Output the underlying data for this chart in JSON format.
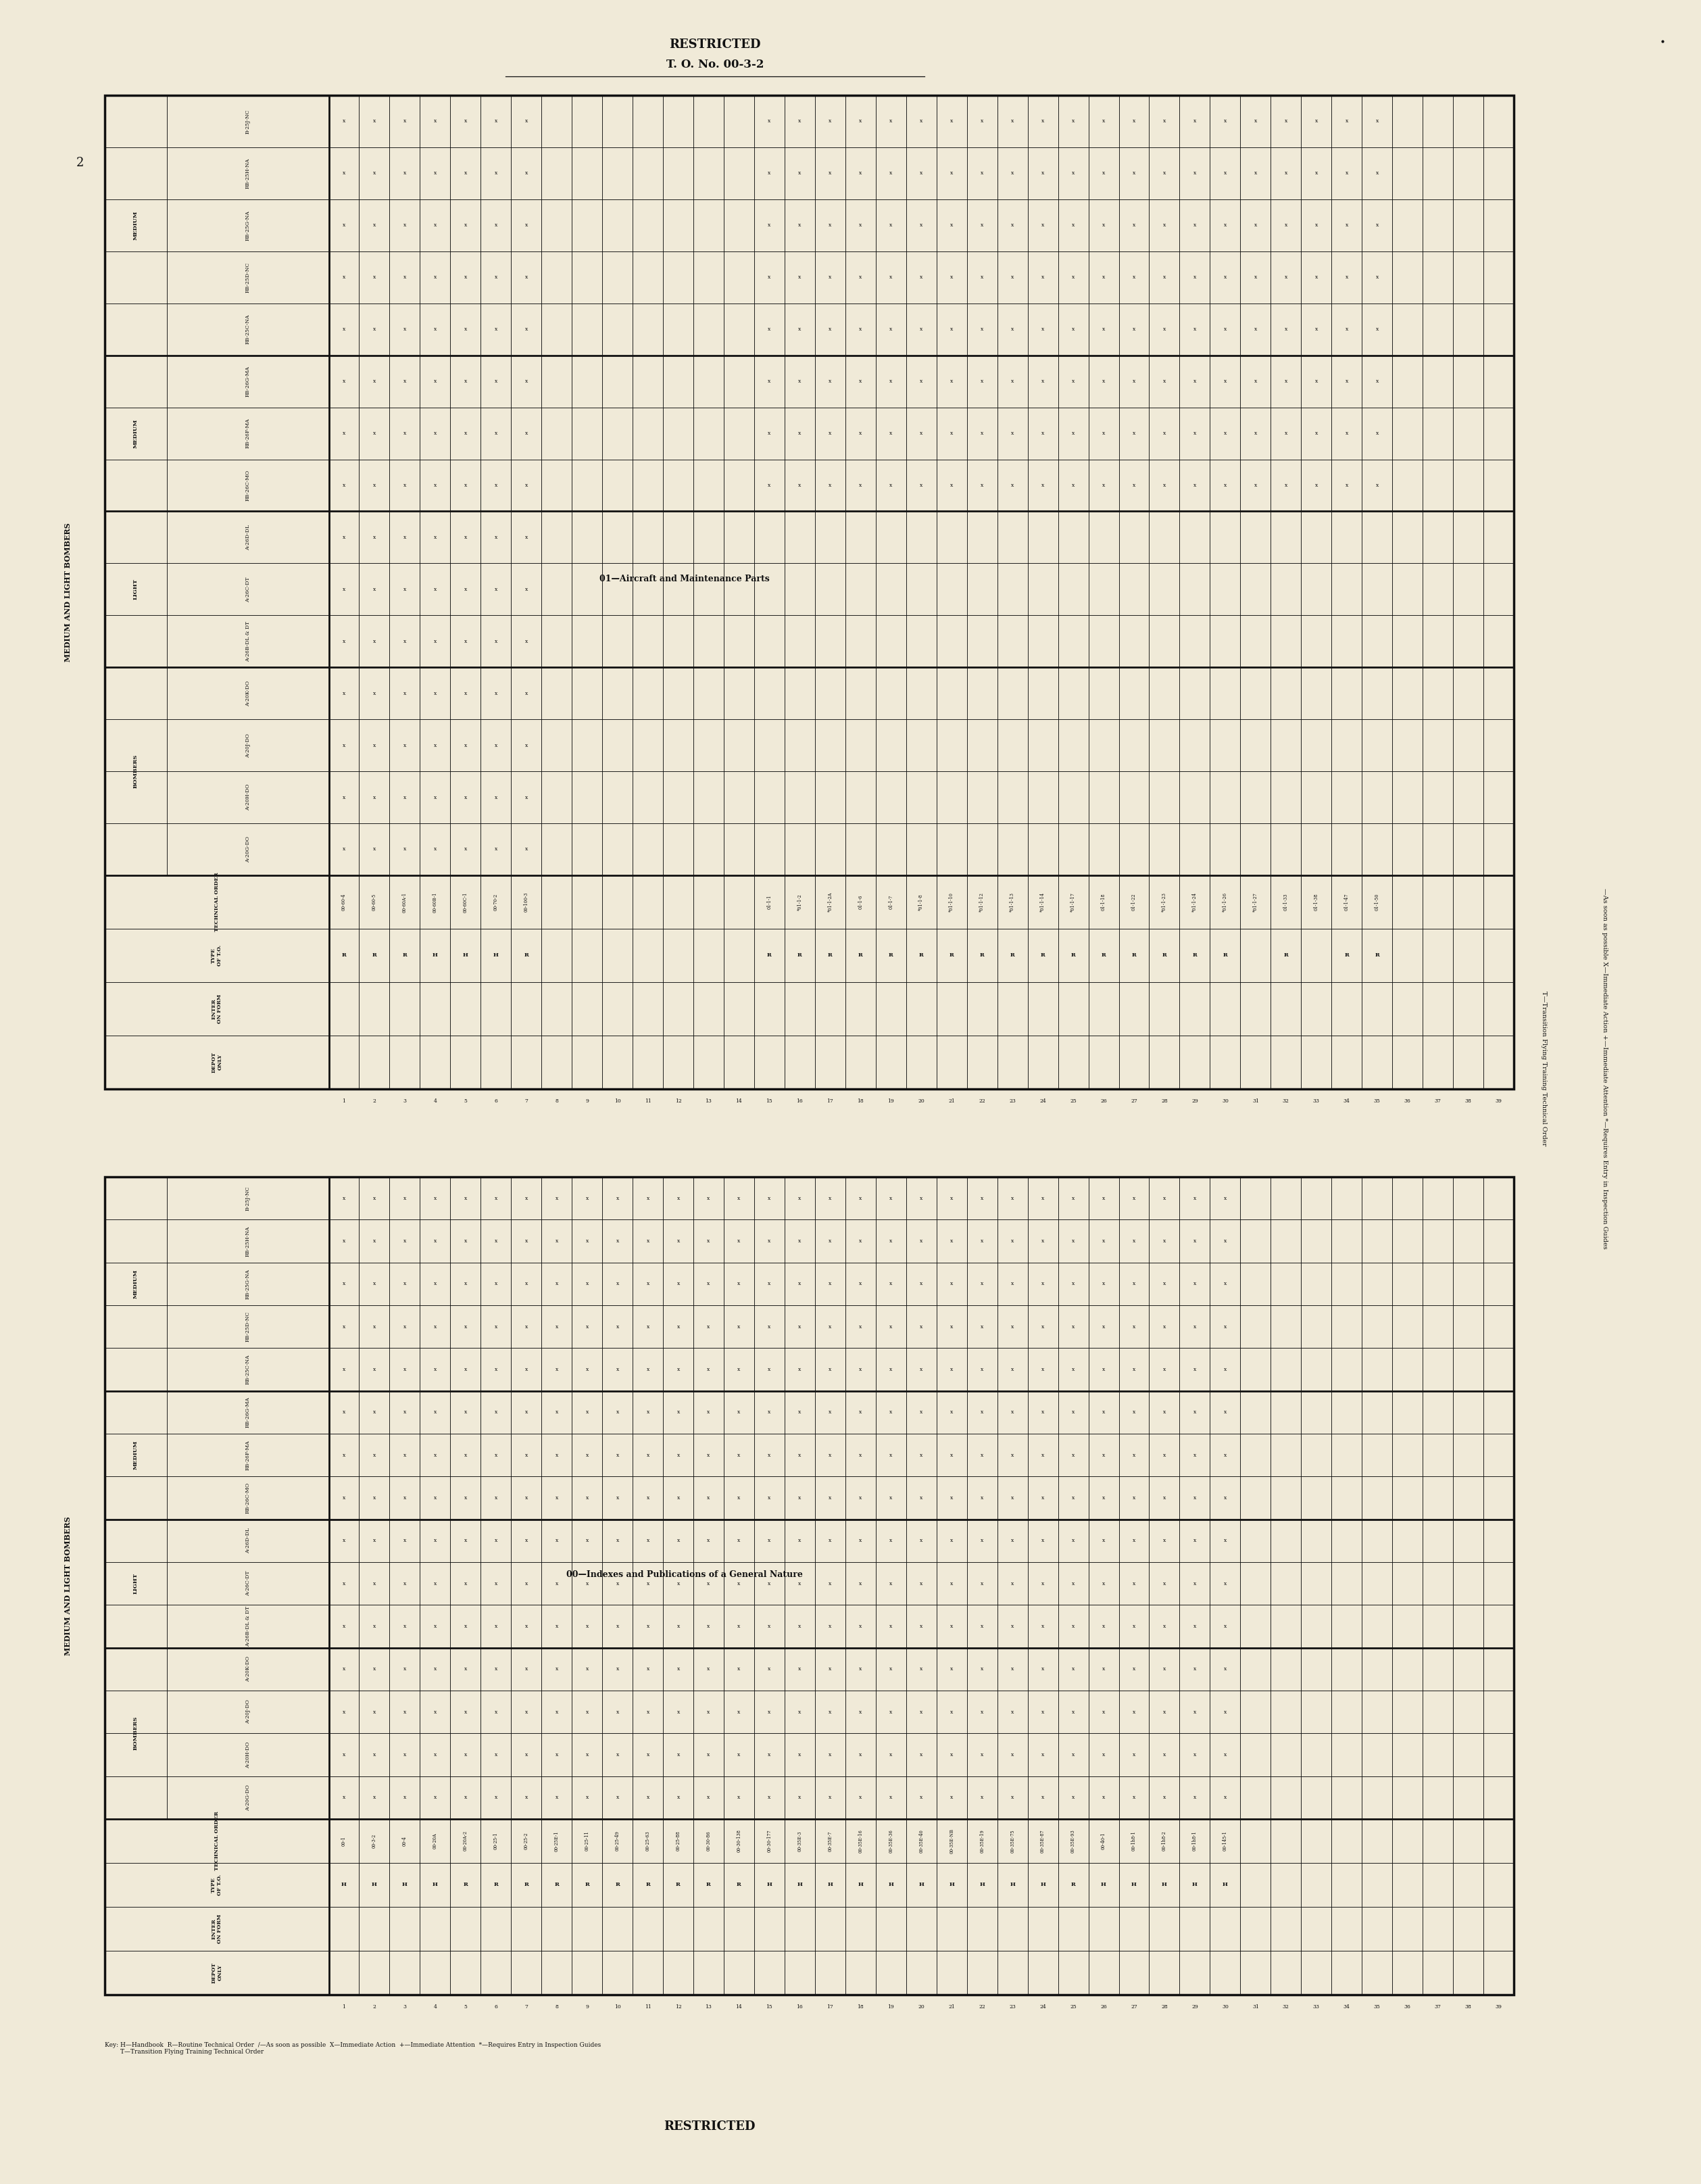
{
  "page_bg": "#f0ead8",
  "line_color": "#111111",
  "header_text": "RESTRICTED",
  "header_subtext": "T. O. No. 00-3-2",
  "footer_text": "RESTRICTED",
  "page_number": "2",
  "table1_title": "01—Aircraft and Maintenance Parts",
  "table2_title": "00—Indexes and Publications of a General Nature",
  "side_label": "MEDIUM AND LIGHT BOMBERS",
  "right_label_1": "—As soon as possible X—Immediate Action +—Immediate Attention *—Requires Entry in Inspection Guides",
  "right_label_2": "T—Transition Flying Training Technical Order",
  "key_text": "Key: H—Handbook  R—Routine Technical Order  /—As soon as possible  X—Immediate Action  +—Immediate Attention  *—Requires Entry in Inspection Guides\n        T—Transition Flying Training Technical Order",
  "aircraft_groups": [
    {
      "label": "BOMBERS",
      "aircraft": [
        "A-20G-DO",
        "A-20H-DO",
        "A-20J-DO",
        "A-20K-DO"
      ]
    },
    {
      "label": "LIGHT",
      "aircraft": [
        "A-26B-DL & DT",
        "A-26C-DT",
        "A-26D-DL"
      ]
    },
    {
      "label": "MEDIUM",
      "aircraft": [
        "RB-26C-MO",
        "RB-26F-MA",
        "RB-26G-MA"
      ]
    },
    {
      "label": "MEDIUM",
      "aircraft": [
        "RB-25C-NA",
        "RB-25D-NC",
        "RB-25G-NA",
        "RB-25H-NA",
        "B-25J-NC"
      ]
    }
  ],
  "meta_rows": [
    "DEPOT\nONLY",
    "ENTER\nON FORM",
    "TYPE\nOF T.O.",
    "TECHNICAL ORDER"
  ],
  "table1_cols": [
    {
      "num": "00-60-4",
      "type": "R",
      "rows": [
        0,
        1,
        2,
        3,
        4,
        5,
        6,
        7,
        8,
        9,
        10,
        11,
        12,
        13,
        14
      ]
    },
    {
      "num": "00-60-5",
      "type": "R",
      "rows": [
        0,
        1,
        2,
        3,
        4,
        5,
        6,
        7,
        8,
        9,
        10,
        11,
        12,
        13,
        14
      ]
    },
    {
      "num": "00-60A-1",
      "type": "R",
      "rows": [
        0,
        1,
        2,
        3,
        4,
        5,
        6,
        7,
        8,
        9,
        10,
        11,
        12,
        13,
        14
      ]
    },
    {
      "num": "00-60B-1",
      "type": "H",
      "rows": [
        0,
        1,
        2,
        3,
        4,
        5,
        6,
        7,
        8,
        9,
        10,
        11,
        12,
        13,
        14
      ]
    },
    {
      "num": "00-60C-1",
      "type": "H",
      "rows": [
        0,
        1,
        2,
        3,
        4,
        5,
        6,
        7,
        8,
        9,
        10,
        11,
        12,
        13,
        14
      ]
    },
    {
      "num": "00-70-2",
      "type": "H",
      "rows": [
        0,
        1,
        2,
        3,
        4,
        5,
        6,
        7,
        8,
        9,
        10,
        11,
        12,
        13,
        14
      ]
    },
    {
      "num": "00-100-3",
      "type": "R",
      "rows": [
        0,
        1,
        2,
        3,
        4,
        5,
        6,
        7,
        8,
        9,
        10,
        11,
        12,
        13,
        14
      ]
    },
    {
      "num": "",
      "type": "",
      "rows": []
    },
    {
      "num": "",
      "type": "",
      "rows": []
    },
    {
      "num": "",
      "type": "",
      "rows": []
    },
    {
      "num": "",
      "type": "",
      "rows": []
    },
    {
      "num": "",
      "type": "",
      "rows": []
    },
    {
      "num": "",
      "type": "",
      "rows": []
    },
    {
      "num": "",
      "type": "",
      "rows": []
    },
    {
      "num": "01-1-1",
      "type": "R",
      "rows": [
        7,
        8,
        9,
        10,
        11,
        12,
        13,
        14
      ]
    },
    {
      "num": "*01-1-2",
      "type": "R",
      "rows": [
        7,
        8,
        9,
        10,
        11,
        12,
        13,
        14
      ]
    },
    {
      "num": "*01-1-2A",
      "type": "R",
      "rows": [
        7,
        8,
        9,
        10,
        11,
        12,
        13,
        14
      ]
    },
    {
      "num": "01-1-6",
      "type": "R",
      "rows": [
        7,
        8,
        9,
        10,
        11,
        12,
        13,
        14
      ]
    },
    {
      "num": "01-1-7",
      "type": "R",
      "rows": [
        7,
        8,
        9,
        10,
        11,
        12,
        13,
        14
      ]
    },
    {
      "num": "*01-1-8",
      "type": "R",
      "rows": [
        7,
        8,
        9,
        10,
        11,
        12,
        13,
        14
      ]
    },
    {
      "num": "*01-1-10",
      "type": "R",
      "rows": [
        7,
        8,
        9,
        10,
        11,
        12,
        13,
        14
      ]
    },
    {
      "num": "*01-1-12",
      "type": "R",
      "rows": [
        7,
        8,
        9,
        10,
        11,
        12,
        13,
        14
      ]
    },
    {
      "num": "*01-1-13",
      "type": "R",
      "rows": [
        7,
        8,
        9,
        10,
        11,
        12,
        13,
        14
      ]
    },
    {
      "num": "*01-1-14",
      "type": "R",
      "rows": [
        7,
        8,
        9,
        10,
        11,
        12,
        13,
        14
      ]
    },
    {
      "num": "*01-1-17",
      "type": "R",
      "rows": [
        7,
        8,
        9,
        10,
        11,
        12,
        13,
        14
      ]
    },
    {
      "num": "01-1-18",
      "type": "R",
      "rows": [
        7,
        8,
        9,
        10,
        11,
        12,
        13,
        14
      ]
    },
    {
      "num": "01-1-22",
      "type": "R",
      "rows": [
        7,
        8,
        9,
        10,
        11,
        12,
        13,
        14
      ]
    },
    {
      "num": "*01-1-23",
      "type": "R",
      "rows": [
        7,
        8,
        9,
        10,
        11,
        12,
        13,
        14
      ]
    },
    {
      "num": "*01-1-24",
      "type": "R",
      "rows": [
        7,
        8,
        9,
        10,
        11,
        12,
        13,
        14
      ]
    },
    {
      "num": "*01-1-26",
      "type": "R",
      "rows": [
        7,
        8,
        9,
        10,
        11,
        12,
        13,
        14
      ]
    },
    {
      "num": "*01-1-27",
      "type": "",
      "rows": [
        7,
        8,
        9,
        10,
        11,
        12,
        13,
        14
      ]
    },
    {
      "num": "01-1-33",
      "type": "R",
      "rows": [
        7,
        8,
        9,
        10,
        11,
        12,
        13,
        14
      ]
    },
    {
      "num": "01-1-38",
      "type": "",
      "rows": [
        7,
        8,
        9,
        10,
        11,
        12,
        13,
        14
      ]
    },
    {
      "num": "01-1-47",
      "type": "R",
      "rows": [
        7,
        8,
        9,
        10,
        11,
        12,
        13,
        14
      ]
    },
    {
      "num": "01-1-50",
      "type": "R",
      "rows": [
        7,
        8,
        9,
        10,
        11,
        12,
        13,
        14
      ]
    },
    {
      "num": "",
      "type": "",
      "rows": []
    },
    {
      "num": "",
      "type": "",
      "rows": []
    },
    {
      "num": "",
      "type": "",
      "rows": []
    },
    {
      "num": "",
      "type": "",
      "rows": []
    }
  ],
  "table2_cols": [
    {
      "num": "00-1",
      "type": "H",
      "rows": [
        0,
        1,
        2,
        3,
        4,
        5,
        6,
        7,
        8,
        9,
        10,
        11,
        12,
        13,
        14
      ]
    },
    {
      "num": "00-3-2",
      "type": "H",
      "rows": [
        0,
        1,
        2,
        3,
        4,
        5,
        6,
        7,
        8,
        9,
        10,
        11,
        12,
        13,
        14
      ]
    },
    {
      "num": "00-4",
      "type": "H",
      "rows": [
        0,
        1,
        2,
        3,
        4,
        5,
        6,
        7,
        8,
        9,
        10,
        11,
        12,
        13,
        14
      ]
    },
    {
      "num": "00-20A",
      "type": "H",
      "rows": [
        0,
        1,
        2,
        3,
        4,
        5,
        6,
        7,
        8,
        9,
        10,
        11,
        12,
        13,
        14
      ]
    },
    {
      "num": "00-20A-2",
      "type": "R",
      "rows": [
        0,
        1,
        2,
        3,
        4,
        5,
        6,
        7,
        8,
        9,
        10,
        11,
        12,
        13,
        14
      ]
    },
    {
      "num": "00-25-1",
      "type": "R",
      "rows": [
        0,
        1,
        2,
        3,
        4,
        5,
        6,
        7,
        8,
        9,
        10,
        11,
        12,
        13,
        14
      ]
    },
    {
      "num": "00-25-2",
      "type": "R",
      "rows": [
        0,
        1,
        2,
        3,
        4,
        5,
        6,
        7,
        8,
        9,
        10,
        11,
        12,
        13,
        14
      ]
    },
    {
      "num": "00-25E-1",
      "type": "R",
      "rows": [
        0,
        1,
        2,
        3,
        4,
        5,
        6,
        7,
        8,
        9,
        10,
        11,
        12,
        13,
        14
      ]
    },
    {
      "num": "00-25-11",
      "type": "R",
      "rows": [
        0,
        1,
        2,
        3,
        4,
        5,
        6,
        7,
        8,
        9,
        10,
        11,
        12,
        13,
        14
      ]
    },
    {
      "num": "00-25-49",
      "type": "R",
      "rows": [
        0,
        1,
        2,
        3,
        4,
        5,
        6,
        7,
        8,
        9,
        10,
        11,
        12,
        13,
        14
      ]
    },
    {
      "num": "00-25-63",
      "type": "R",
      "rows": [
        0,
        1,
        2,
        3,
        4,
        5,
        6,
        7,
        8,
        9,
        10,
        11,
        12,
        13,
        14
      ]
    },
    {
      "num": "00-25-88",
      "type": "R",
      "rows": [
        0,
        1,
        2,
        3,
        4,
        5,
        6,
        7,
        8,
        9,
        10,
        11,
        12,
        13,
        14
      ]
    },
    {
      "num": "00-30-86",
      "type": "R",
      "rows": [
        0,
        1,
        2,
        3,
        4,
        5,
        6,
        7,
        8,
        9,
        10,
        11,
        12,
        13,
        14
      ]
    },
    {
      "num": "00-30-138",
      "type": "R",
      "rows": [
        0,
        1,
        2,
        3,
        4,
        5,
        6,
        7,
        8,
        9,
        10,
        11,
        12,
        13,
        14
      ]
    },
    {
      "num": "00-30-177",
      "type": "H",
      "rows": [
        0,
        1,
        2,
        3,
        4,
        5,
        6,
        7,
        8,
        9,
        10,
        11,
        12,
        13,
        14
      ]
    },
    {
      "num": "00-35E-3",
      "type": "H",
      "rows": [
        0,
        1,
        2,
        3,
        4,
        5,
        6,
        7,
        8,
        9,
        10,
        11,
        12,
        13,
        14
      ]
    },
    {
      "num": "00-35E-7",
      "type": "H",
      "rows": [
        0,
        1,
        2,
        3,
        4,
        5,
        6,
        7,
        8,
        9,
        10,
        11,
        12,
        13,
        14
      ]
    },
    {
      "num": "00-35E-16",
      "type": "H",
      "rows": [
        0,
        1,
        2,
        3,
        4,
        5,
        6,
        7,
        8,
        9,
        10,
        11,
        12,
        13,
        14
      ]
    },
    {
      "num": "00-35E-36",
      "type": "H",
      "rows": [
        0,
        1,
        2,
        3,
        4,
        5,
        6,
        7,
        8,
        9,
        10,
        11,
        12,
        13,
        14
      ]
    },
    {
      "num": "00-35E-40",
      "type": "H",
      "rows": [
        0,
        1,
        2,
        3,
        4,
        5,
        6,
        7,
        8,
        9,
        10,
        11,
        12,
        13,
        14
      ]
    },
    {
      "num": "00-35E-NB",
      "type": "H",
      "rows": [
        0,
        1,
        2,
        3,
        4,
        5,
        6,
        7,
        8,
        9,
        10,
        11,
        12,
        13,
        14
      ]
    },
    {
      "num": "00-35E-19",
      "type": "H",
      "rows": [
        0,
        1,
        2,
        3,
        4,
        5,
        6,
        7,
        8,
        9,
        10,
        11,
        12,
        13,
        14
      ]
    },
    {
      "num": "00-35E-75",
      "type": "H",
      "rows": [
        0,
        1,
        2,
        3,
        4,
        5,
        6,
        7,
        8,
        9,
        10,
        11,
        12,
        13,
        14
      ]
    },
    {
      "num": "00-35E-87",
      "type": "H",
      "rows": [
        0,
        1,
        2,
        3,
        4,
        5,
        6,
        7,
        8,
        9,
        10,
        11,
        12,
        13,
        14
      ]
    },
    {
      "num": "00-35E-93",
      "type": "R",
      "rows": [
        0,
        1,
        2,
        3,
        4,
        5,
        6,
        7,
        8,
        9,
        10,
        11,
        12,
        13,
        14
      ]
    },
    {
      "num": "00-40-1",
      "type": "H",
      "rows": [
        0,
        1,
        2,
        3,
        4,
        5,
        6,
        7,
        8,
        9,
        10,
        11,
        12,
        13,
        14
      ]
    },
    {
      "num": "00-1h8-1",
      "type": "H",
      "rows": [
        0,
        1,
        2,
        3,
        4,
        5,
        6,
        7,
        8,
        9,
        10,
        11,
        12,
        13,
        14
      ]
    },
    {
      "num": "00-1h8-2",
      "type": "H",
      "rows": [
        0,
        1,
        2,
        3,
        4,
        5,
        6,
        7,
        8,
        9,
        10,
        11,
        12,
        13,
        14
      ]
    },
    {
      "num": "00-1h8-1",
      "type": "H",
      "rows": [
        0,
        1,
        2,
        3,
        4,
        5,
        6,
        7,
        8,
        9,
        10,
        11,
        12,
        13,
        14
      ]
    },
    {
      "num": "00-145-1",
      "type": "H",
      "rows": [
        0,
        1,
        2,
        3,
        4,
        5,
        6,
        7,
        8,
        9,
        10,
        11,
        12,
        13,
        14
      ]
    },
    {
      "num": "",
      "type": "",
      "rows": []
    },
    {
      "num": "",
      "type": "",
      "rows": []
    },
    {
      "num": "",
      "type": "",
      "rows": []
    },
    {
      "num": "",
      "type": "",
      "rows": []
    },
    {
      "num": "",
      "type": "",
      "rows": []
    },
    {
      "num": "",
      "type": "",
      "rows": []
    },
    {
      "num": "",
      "type": "",
      "rows": []
    },
    {
      "num": "",
      "type": "",
      "rows": []
    },
    {
      "num": "",
      "type": "",
      "rows": []
    }
  ]
}
